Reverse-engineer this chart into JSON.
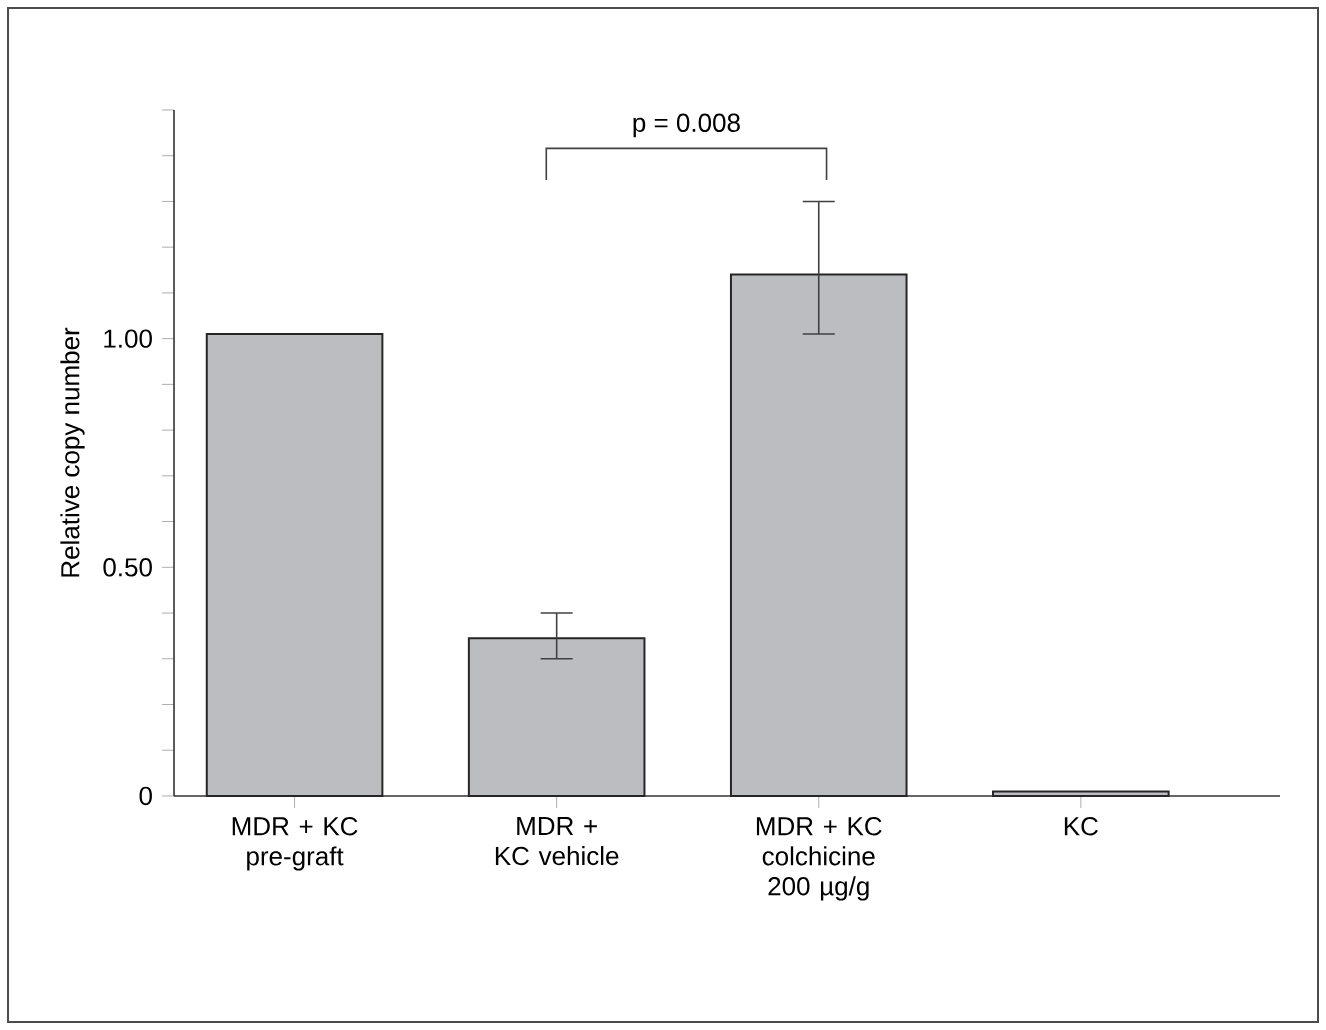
{
  "chart_data": {
    "type": "bar",
    "ylabel": "Relative copy number",
    "categories": [
      "MDR + KC pre-graft",
      "MDR + KC vehicle",
      "MDR + KC colchicine 200 µg/g",
      "KC"
    ],
    "values": [
      1.01,
      0.345,
      1.14,
      0.01
    ],
    "errors": [
      null,
      [
        0.3,
        0.4
      ],
      [
        1.01,
        1.3
      ],
      null
    ],
    "color": "#bcbdc1",
    "ylim": [
      0,
      1.5
    ],
    "yticks": [
      {
        "value": 0,
        "label": "0"
      },
      {
        "value": 0.1,
        "label": null
      },
      {
        "value": 0.2,
        "label": null
      },
      {
        "value": 0.3,
        "label": null
      },
      {
        "value": 0.4,
        "label": null
      },
      {
        "value": 0.5,
        "label": "0.50"
      },
      {
        "value": 0.6,
        "label": null
      },
      {
        "value": 0.7,
        "label": null
      },
      {
        "value": 0.8,
        "label": null
      },
      {
        "value": 0.9,
        "label": null
      },
      {
        "value": 1.0,
        "label": "1.00"
      },
      {
        "value": 1.1,
        "label": null
      },
      {
        "value": 1.2,
        "label": null
      },
      {
        "value": 1.3,
        "label": null
      },
      {
        "value": 1.4,
        "label": null
      },
      {
        "value": 1.5,
        "label": null
      }
    ],
    "annotations": [
      "p = 0.008"
    ],
    "grid": false
  }
}
